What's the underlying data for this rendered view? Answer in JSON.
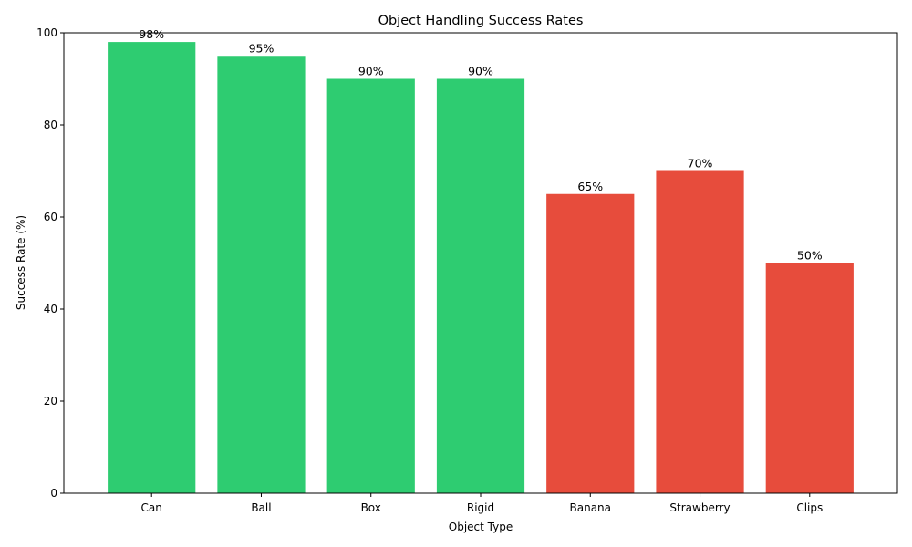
{
  "chart_data": {
    "type": "bar",
    "title": "Object Handling Success Rates",
    "xlabel": "Object Type",
    "ylabel": "Success Rate (%)",
    "categories": [
      "Can",
      "Ball",
      "Box",
      "Rigid",
      "Banana",
      "Strawberry",
      "Clips"
    ],
    "values": [
      98,
      95,
      90,
      90,
      65,
      70,
      50
    ],
    "value_labels": [
      "98%",
      "95%",
      "90%",
      "90%",
      "65%",
      "70%",
      "50%"
    ],
    "colors": [
      "#2ecc71",
      "#2ecc71",
      "#2ecc71",
      "#2ecc71",
      "#e74c3c",
      "#e74c3c",
      "#e74c3c"
    ],
    "ylim": [
      0,
      100
    ],
    "yticks": [
      0,
      20,
      40,
      60,
      80,
      100
    ],
    "grid": false,
    "legend": "none"
  }
}
